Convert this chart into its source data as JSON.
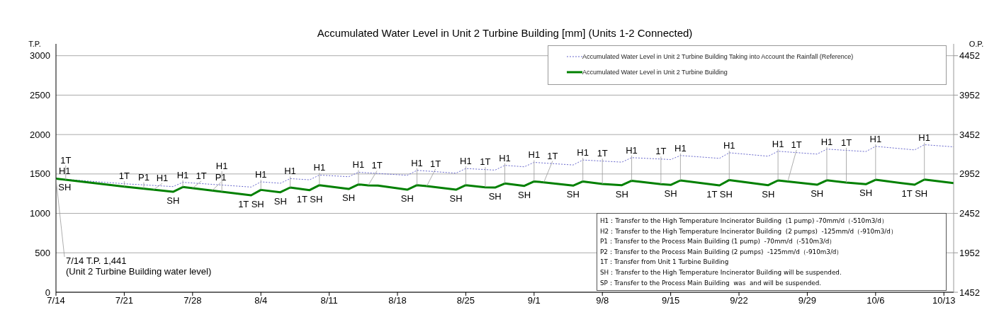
{
  "chart_data": {
    "type": "line",
    "title": "Accumulated Water Level in Unit 2 Turbine Building [mm] (Units 1-2 Connected)",
    "ylabel": "T.P.",
    "y2label": "O.P.",
    "xlim": [
      "--07-14",
      "--10-14"
    ],
    "xticks": [
      {
        "value": "--07-14",
        "label": "7/14"
      },
      {
        "value": "--07-21",
        "label": "7/21"
      },
      {
        "value": "--07-28",
        "label": "7/28"
      },
      {
        "value": "--08-04",
        "label": "8/4"
      },
      {
        "value": "--08-11",
        "label": "8/11"
      },
      {
        "value": "--08-18",
        "label": "8/18"
      },
      {
        "value": "--08-25",
        "label": "8/25"
      },
      {
        "value": "--09-01",
        "label": "9/1"
      },
      {
        "value": "--09-08",
        "label": "9/8"
      },
      {
        "value": "--09-15",
        "label": "9/15"
      },
      {
        "value": "--09-22",
        "label": "9/22"
      },
      {
        "value": "--09-29",
        "label": "9/29"
      },
      {
        "value": "--10-06",
        "label": "10/6"
      },
      {
        "value": "--10-13",
        "label": "10/13"
      }
    ],
    "ylim": [
      0,
      3150
    ],
    "yticks": [
      0,
      500,
      1000,
      1500,
      2000,
      2500,
      3000
    ],
    "y2lim": [
      1452,
      4602
    ],
    "y2ticks": [
      1452,
      1952,
      2452,
      2952,
      3452,
      3952,
      4452
    ],
    "grid": "y",
    "legend": "top right",
    "marker": "none",
    "series": [
      {
        "name": "Accumulated Water Level in Unit 2 Turbine Building Taking into Account the Rainfall (Reference)",
        "color": "#6666cc",
        "line_style": "dotted",
        "x": [
          "--07-14",
          "--07-21",
          "--07-26",
          "--07-27",
          "--08-03",
          "--08-04",
          "--08-06",
          "--08-07",
          "--08-09",
          "--08-10",
          "--08-13",
          "--08-14",
          "--08-19",
          "--08-20",
          "--08-24",
          "--08-25",
          "--08-28",
          "--08-29",
          "--08-31",
          "--09-01",
          "--09-05",
          "--09-06",
          "--09-10",
          "--09-11",
          "--09-15",
          "--09-16",
          "--09-20",
          "--09-21",
          "--09-25",
          "--09-26",
          "--09-30",
          "--10-01",
          "--10-05",
          "--10-06",
          "--10-10",
          "--10-11",
          "--10-14"
        ],
        "values": [
          1441,
          1376,
          1340,
          1394,
          1334,
          1400,
          1382,
          1441,
          1426,
          1486,
          1465,
          1522,
          1483,
          1546,
          1510,
          1569,
          1549,
          1609,
          1591,
          1647,
          1614,
          1677,
          1650,
          1707,
          1683,
          1734,
          1698,
          1769,
          1725,
          1788,
          1752,
          1815,
          1784,
          1850,
          1805,
          1871,
          1844
        ]
      },
      {
        "name": "Accumulated Water Level in Unit 2 Turbine Building",
        "color": "#008000",
        "line_style": "solid",
        "x": [
          "--07-14",
          "--07-21",
          "--07-26",
          "--07-27",
          "--08-03",
          "--08-04",
          "--08-06",
          "--08-07",
          "--08-09",
          "--08-10",
          "--08-13",
          "--08-14",
          "--08-15",
          "--08-16",
          "--08-19",
          "--08-20",
          "--08-21",
          "--08-24",
          "--08-25",
          "--08-27",
          "--08-28",
          "--08-29",
          "--08-31",
          "--09-01",
          "--09-02",
          "--09-05",
          "--09-06",
          "--09-08",
          "--09-10",
          "--09-11",
          "--09-14",
          "--09-15",
          "--09-16",
          "--09-20",
          "--09-21",
          "--09-25",
          "--09-26",
          "--09-27",
          "--09-30",
          "--10-01",
          "--10-03",
          "--10-05",
          "--10-06",
          "--10-10",
          "--10-11",
          "--10-14"
        ],
        "values": [
          1441,
          1340,
          1274,
          1334,
          1229,
          1298,
          1268,
          1328,
          1295,
          1358,
          1310,
          1367,
          1356,
          1353,
          1301,
          1358,
          1346,
          1301,
          1358,
          1331,
          1328,
          1379,
          1349,
          1405,
          1394,
          1352,
          1405,
          1373,
          1358,
          1414,
          1370,
          1361,
          1418,
          1355,
          1423,
          1358,
          1418,
          1405,
          1364,
          1420,
          1390,
          1370,
          1426,
          1364,
          1429,
          1385
        ]
      }
    ],
    "annotations": [
      {
        "text": "H1",
        "x": "--07-14",
        "y": 1441
      },
      {
        "text": "SH",
        "x": "--07-14",
        "y": 1441
      },
      {
        "text": "7/14  T.P. 1,441\n(Unit 2 Turbine Building water level)",
        "x": "--07-14",
        "y": 1441
      },
      {
        "text": "1T",
        "x": "--07-15",
        "y": 1427
      },
      {
        "text": "1T",
        "x": "--07-21",
        "y": 1340
      },
      {
        "text": "P1",
        "x": "--07-23",
        "y": 1314
      },
      {
        "text": "H1",
        "x": "--07-24",
        "y": 1301
      },
      {
        "text": "SH",
        "x": "--07-26",
        "y": 1274
      },
      {
        "text": "H1",
        "x": "--07-27",
        "y": 1334
      },
      {
        "text": "1T",
        "x": "--07-28",
        "y": 1320
      },
      {
        "text": "P1",
        "x": "--07-30",
        "y": 1290
      },
      {
        "text": "H1",
        "x": "--07-31",
        "y": 1275
      },
      {
        "text": "1T SH",
        "x": "--08-03",
        "y": 1229
      },
      {
        "text": "H1",
        "x": "--08-04",
        "y": 1298
      },
      {
        "text": "SH",
        "x": "--08-06",
        "y": 1268
      },
      {
        "text": "H1",
        "x": "--08-07",
        "y": 1328
      },
      {
        "text": "1T SH",
        "x": "--08-09",
        "y": 1295
      },
      {
        "text": "H1",
        "x": "--08-10",
        "y": 1358
      },
      {
        "text": "SH",
        "x": "--08-13",
        "y": 1310
      },
      {
        "text": "H1",
        "x": "--08-14",
        "y": 1367
      },
      {
        "text": "1T",
        "x": "--08-15",
        "y": 1356
      },
      {
        "text": "SH",
        "x": "--08-19",
        "y": 1301
      },
      {
        "text": "H1",
        "x": "--08-20",
        "y": 1358
      },
      {
        "text": "1T",
        "x": "--08-21",
        "y": 1346
      },
      {
        "text": "SH",
        "x": "--08-24",
        "y": 1301
      },
      {
        "text": "H1",
        "x": "--08-25",
        "y": 1358
      },
      {
        "text": "1T",
        "x": "--08-27",
        "y": 1331
      },
      {
        "text": "SH",
        "x": "--08-28",
        "y": 1328
      },
      {
        "text": "H1",
        "x": "--08-29",
        "y": 1379
      },
      {
        "text": "SH",
        "x": "--08-31",
        "y": 1349
      },
      {
        "text": "H1",
        "x": "--09-01",
        "y": 1405
      },
      {
        "text": "1T",
        "x": "--09-02",
        "y": 1394
      },
      {
        "text": "SH",
        "x": "--09-05",
        "y": 1352
      },
      {
        "text": "H1",
        "x": "--09-06",
        "y": 1405
      },
      {
        "text": "1T",
        "x": "--09-08",
        "y": 1373
      },
      {
        "text": "SH",
        "x": "--09-10",
        "y": 1358
      },
      {
        "text": "H1",
        "x": "--09-11",
        "y": 1414
      },
      {
        "text": "1T",
        "x": "--09-14",
        "y": 1370
      },
      {
        "text": "SH",
        "x": "--09-15",
        "y": 1361
      },
      {
        "text": "H1",
        "x": "--09-16",
        "y": 1418
      },
      {
        "text": "1T SH",
        "x": "--09-20",
        "y": 1355
      },
      {
        "text": "H1",
        "x": "--09-21",
        "y": 1423
      },
      {
        "text": "SH",
        "x": "--09-25",
        "y": 1358
      },
      {
        "text": "H1",
        "x": "--09-26",
        "y": 1418
      },
      {
        "text": "1T",
        "x": "--09-27",
        "y": 1405
      },
      {
        "text": "SH",
        "x": "--09-30",
        "y": 1364
      },
      {
        "text": "H1",
        "x": "--10-01",
        "y": 1420
      },
      {
        "text": "1T",
        "x": "--10-03",
        "y": 1390
      },
      {
        "text": "SH",
        "x": "--10-05",
        "y": 1370
      },
      {
        "text": "H1",
        "x": "--10-06",
        "y": 1426
      },
      {
        "text": "1T SH",
        "x": "--10-10",
        "y": 1364
      },
      {
        "text": "H1",
        "x": "--10-11",
        "y": 1429
      },
      "H1：Transfer to the High Temperature Incinerator Building  (1 pump) -70mm/d（-510m3/d）\nH2：Transfer to the High Temperature Incinerator Building  (2 pumps)  -125mm/d（-910m3/d）\nP1：Transfer to the Process Main Building (1 pump)  -70mm/d（-510m3/d）\nP2：Transfer to the Process Main Building (2 pumps)  -125mm/d（-910m3/d）\n1T：Transfer from Unit 1 Turbine Building\nSH：Transfer to the High Temperature Incinerator Building will be suspended.\nSP：Transfer to the Process Main Building  was  and will be suspended."
    ]
  }
}
